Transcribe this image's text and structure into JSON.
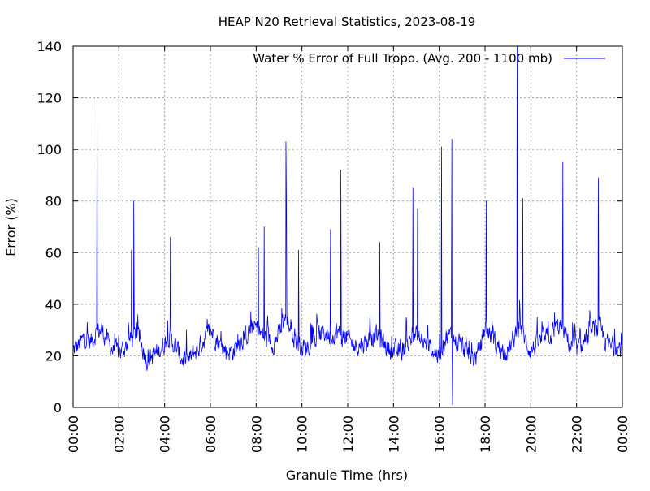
{
  "chart_data": {
    "type": "line",
    "title": "HEAP N20 Retrieval Statistics, 2023-08-19",
    "xlabel": "Granule Time (hrs)",
    "ylabel": "Error (%)",
    "xlim": [
      0,
      24
    ],
    "ylim": [
      0,
      140
    ],
    "x_ticks": [
      0,
      2,
      4,
      6,
      8,
      10,
      12,
      14,
      16,
      18,
      20,
      22,
      24
    ],
    "x_tick_labels": [
      "00:00",
      "02:00",
      "04:00",
      "06:00",
      "08:00",
      "10:00",
      "12:00",
      "14:00",
      "16:00",
      "18:00",
      "20:00",
      "22:00",
      "00:00"
    ],
    "y_ticks": [
      0,
      20,
      40,
      60,
      80,
      100,
      120,
      140
    ],
    "y_tick_labels": [
      "0",
      "20",
      "40",
      "60",
      "80",
      "100",
      "120",
      "140"
    ],
    "grid": true,
    "legend_placement": "top-right",
    "colors": {
      "series": "#0000ff",
      "grid": "#a0a0a0",
      "axes": "#000000"
    },
    "series": [
      {
        "name": "Water % Error of Full Tropo. (Avg. 200 - 1100 mb)",
        "base": [
          [
            0.0,
            22
          ],
          [
            0.25,
            24
          ],
          [
            0.5,
            27
          ],
          [
            0.75,
            25
          ],
          [
            1.0,
            29
          ],
          [
            1.25,
            30
          ],
          [
            1.5,
            26
          ],
          [
            1.75,
            22
          ],
          [
            2.0,
            21
          ],
          [
            2.25,
            23
          ],
          [
            2.5,
            26
          ],
          [
            2.75,
            28
          ],
          [
            3.0,
            24
          ],
          [
            3.25,
            18
          ],
          [
            3.5,
            20
          ],
          [
            3.75,
            22
          ],
          [
            4.0,
            25
          ],
          [
            4.25,
            27
          ],
          [
            4.5,
            23
          ],
          [
            4.75,
            19
          ],
          [
            5.0,
            17
          ],
          [
            5.25,
            21
          ],
          [
            5.5,
            23
          ],
          [
            5.75,
            27
          ],
          [
            6.0,
            30
          ],
          [
            6.25,
            27
          ],
          [
            6.5,
            23
          ],
          [
            6.75,
            22
          ],
          [
            7.0,
            22
          ],
          [
            7.25,
            25
          ],
          [
            7.5,
            27
          ],
          [
            7.75,
            30
          ],
          [
            8.0,
            31
          ],
          [
            8.25,
            28
          ],
          [
            8.5,
            26
          ],
          [
            8.75,
            25
          ],
          [
            9.0,
            28
          ],
          [
            9.25,
            35
          ],
          [
            9.5,
            31
          ],
          [
            9.75,
            26
          ],
          [
            10.0,
            23
          ],
          [
            10.25,
            24
          ],
          [
            10.5,
            25
          ],
          [
            10.75,
            28
          ],
          [
            11.0,
            29
          ],
          [
            11.25,
            27
          ],
          [
            11.5,
            30
          ],
          [
            11.75,
            27
          ],
          [
            12.0,
            27
          ],
          [
            12.25,
            24
          ],
          [
            12.5,
            24
          ],
          [
            12.75,
            25
          ],
          [
            13.0,
            27
          ],
          [
            13.25,
            28
          ],
          [
            13.5,
            26
          ],
          [
            13.75,
            23
          ],
          [
            14.0,
            22
          ],
          [
            14.25,
            21
          ],
          [
            14.5,
            23
          ],
          [
            14.75,
            26
          ],
          [
            15.0,
            28
          ],
          [
            15.25,
            25
          ],
          [
            15.5,
            24
          ],
          [
            15.75,
            22
          ],
          [
            16.0,
            20
          ],
          [
            16.25,
            27
          ],
          [
            16.5,
            28
          ],
          [
            16.75,
            25
          ],
          [
            17.0,
            24
          ],
          [
            17.25,
            21
          ],
          [
            17.5,
            18
          ],
          [
            17.75,
            22
          ],
          [
            18.0,
            31
          ],
          [
            18.25,
            28
          ],
          [
            18.5,
            24
          ],
          [
            18.75,
            22
          ],
          [
            19.0,
            22
          ],
          [
            19.25,
            26
          ],
          [
            19.5,
            33
          ],
          [
            19.75,
            26
          ],
          [
            20.0,
            22
          ],
          [
            20.25,
            24
          ],
          [
            20.5,
            26
          ],
          [
            20.75,
            27
          ],
          [
            21.0,
            29
          ],
          [
            21.25,
            32
          ],
          [
            21.5,
            28
          ],
          [
            21.75,
            24
          ],
          [
            22.0,
            22
          ],
          [
            22.25,
            24
          ],
          [
            22.5,
            27
          ],
          [
            22.75,
            30
          ],
          [
            23.0,
            31
          ],
          [
            23.25,
            26
          ],
          [
            23.5,
            23
          ],
          [
            23.75,
            24
          ],
          [
            24.0,
            22
          ]
        ],
        "spikes": [
          [
            1.05,
            119
          ],
          [
            2.65,
            80
          ],
          [
            4.25,
            66
          ],
          [
            9.3,
            103
          ],
          [
            9.32,
            82
          ],
          [
            9.85,
            61
          ],
          [
            11.7,
            92
          ],
          [
            11.25,
            69
          ],
          [
            8.35,
            70
          ],
          [
            13.4,
            64
          ],
          [
            14.85,
            85
          ],
          [
            15.05,
            77
          ],
          [
            16.1,
            101
          ],
          [
            16.55,
            104
          ],
          [
            16.58,
            1
          ],
          [
            18.05,
            80
          ],
          [
            19.4,
            140
          ],
          [
            19.65,
            81
          ],
          [
            21.4,
            95
          ],
          [
            22.95,
            89
          ],
          [
            2.55,
            61
          ],
          [
            8.1,
            62
          ]
        ]
      }
    ]
  }
}
